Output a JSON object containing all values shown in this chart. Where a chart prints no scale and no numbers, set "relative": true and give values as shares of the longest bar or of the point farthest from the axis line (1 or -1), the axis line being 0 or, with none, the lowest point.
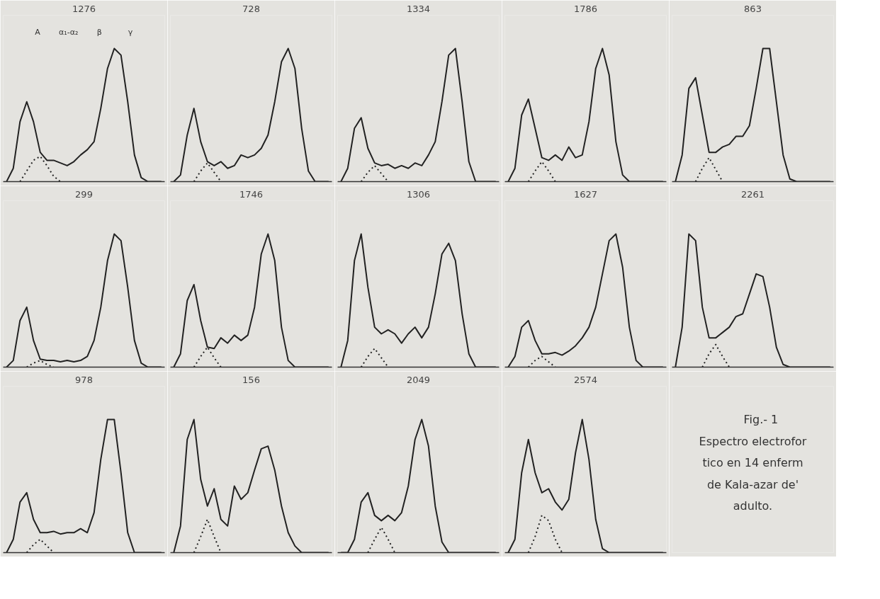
{
  "chart_data": [
    {
      "type": "line",
      "title": "1276",
      "relative": true,
      "categories": [
        null,
        null,
        null,
        null,
        null,
        null,
        null,
        null,
        null,
        null,
        null,
        null,
        null,
        null,
        null,
        null,
        null,
        null,
        null,
        null,
        null,
        null,
        null,
        null
      ],
      "annotations": [
        "A",
        "α₁-α₂",
        "β",
        "γ"
      ],
      "series": [
        {
          "color": "#222222",
          "line_style": "solid",
          "values": [
            0,
            0.1,
            0.45,
            0.6,
            0.45,
            0.22,
            0.16,
            0.16,
            0.14,
            0.12,
            0.15,
            0.2,
            0.24,
            0.3,
            0.55,
            0.85,
            1.0,
            0.95,
            0.6,
            0.2,
            0.03,
            0,
            0,
            0
          ]
        },
        {
          "color": "#222222",
          "line_style": "dotted",
          "values": [
            null,
            null,
            0,
            0.08,
            0.16,
            0.19,
            0.12,
            0.04,
            0,
            null,
            null,
            null,
            null,
            null,
            null,
            null,
            null,
            null,
            null,
            null,
            null,
            null,
            null,
            null
          ]
        }
      ]
    },
    {
      "type": "line",
      "title": "728",
      "relative": true,
      "categories": [
        null,
        null,
        null,
        null,
        null,
        null,
        null,
        null,
        null,
        null,
        null,
        null,
        null,
        null,
        null,
        null,
        null,
        null,
        null,
        null,
        null,
        null,
        null,
        null
      ],
      "series": [
        {
          "color": "#222222",
          "line_style": "solid",
          "values": [
            0,
            0.05,
            0.35,
            0.55,
            0.3,
            0.15,
            0.12,
            0.15,
            0.1,
            0.12,
            0.2,
            0.18,
            0.2,
            0.25,
            0.35,
            0.6,
            0.9,
            1.0,
            0.85,
            0.4,
            0.08,
            0,
            0,
            0
          ]
        },
        {
          "color": "#222222",
          "line_style": "dotted",
          "values": [
            null,
            null,
            null,
            0,
            0.08,
            0.14,
            0.07,
            0,
            null,
            null,
            null,
            null,
            null,
            null,
            null,
            null,
            null,
            null,
            null,
            null,
            null,
            null,
            null,
            null
          ]
        }
      ]
    },
    {
      "type": "line",
      "title": "1334",
      "relative": true,
      "categories": [
        null,
        null,
        null,
        null,
        null,
        null,
        null,
        null,
        null,
        null,
        null,
        null,
        null,
        null,
        null,
        null,
        null,
        null,
        null,
        null,
        null,
        null,
        null,
        null
      ],
      "series": [
        {
          "color": "#222222",
          "line_style": "solid",
          "values": [
            0,
            0.1,
            0.4,
            0.48,
            0.25,
            0.14,
            0.12,
            0.13,
            0.1,
            0.12,
            0.1,
            0.14,
            0.12,
            0.2,
            0.3,
            0.6,
            0.95,
            1.0,
            0.6,
            0.15,
            0,
            0,
            0,
            0
          ]
        },
        {
          "color": "#222222",
          "line_style": "dotted",
          "values": [
            null,
            null,
            null,
            0,
            0.07,
            0.12,
            0.06,
            0,
            null,
            null,
            null,
            null,
            null,
            null,
            null,
            null,
            null,
            null,
            null,
            null,
            null,
            null,
            null,
            null
          ]
        }
      ]
    },
    {
      "type": "line",
      "title": "1786",
      "relative": true,
      "categories": [
        null,
        null,
        null,
        null,
        null,
        null,
        null,
        null,
        null,
        null,
        null,
        null,
        null,
        null,
        null,
        null,
        null,
        null,
        null,
        null,
        null,
        null,
        null,
        null
      ],
      "series": [
        {
          "color": "#222222",
          "line_style": "solid",
          "values": [
            0,
            0.1,
            0.5,
            0.62,
            0.4,
            0.18,
            0.16,
            0.2,
            0.16,
            0.26,
            0.18,
            0.2,
            0.45,
            0.85,
            1.0,
            0.8,
            0.3,
            0.05,
            0,
            0,
            0,
            0,
            0,
            0
          ]
        },
        {
          "color": "#222222",
          "line_style": "dotted",
          "values": [
            null,
            null,
            null,
            0,
            0.08,
            0.15,
            0.08,
            0,
            null,
            null,
            null,
            null,
            null,
            null,
            null,
            null,
            null,
            null,
            null,
            null,
            null,
            null,
            null,
            null
          ]
        }
      ]
    },
    {
      "type": "line",
      "title": "863",
      "relative": true,
      "categories": [
        null,
        null,
        null,
        null,
        null,
        null,
        null,
        null,
        null,
        null,
        null,
        null,
        null,
        null,
        null,
        null,
        null,
        null,
        null,
        null,
        null,
        null,
        null,
        null
      ],
      "series": [
        {
          "color": "#222222",
          "line_style": "solid",
          "values": [
            0,
            0.2,
            0.7,
            0.78,
            0.5,
            0.22,
            0.22,
            0.26,
            0.28,
            0.34,
            0.34,
            0.42,
            0.7,
            1.0,
            1.0,
            0.6,
            0.2,
            0.02,
            0,
            0,
            0,
            0,
            0,
            0
          ]
        },
        {
          "color": "#222222",
          "line_style": "dotted",
          "values": [
            null,
            null,
            null,
            0,
            0.1,
            0.18,
            0.09,
            0,
            null,
            null,
            null,
            null,
            null,
            null,
            null,
            null,
            null,
            null,
            null,
            null,
            null,
            null,
            null,
            null
          ]
        }
      ]
    },
    {
      "type": "line",
      "title": "299",
      "relative": true,
      "categories": [
        null,
        null,
        null,
        null,
        null,
        null,
        null,
        null,
        null,
        null,
        null,
        null,
        null,
        null,
        null,
        null,
        null,
        null,
        null,
        null,
        null,
        null,
        null,
        null
      ],
      "series": [
        {
          "color": "#222222",
          "line_style": "solid",
          "values": [
            0,
            0.05,
            0.35,
            0.45,
            0.2,
            0.06,
            0.05,
            0.05,
            0.04,
            0.05,
            0.04,
            0.05,
            0.08,
            0.2,
            0.45,
            0.8,
            1.0,
            0.95,
            0.6,
            0.2,
            0.03,
            0,
            0,
            0
          ]
        },
        {
          "color": "#222222",
          "line_style": "dotted",
          "values": [
            null,
            null,
            null,
            0,
            0.03,
            0.05,
            0.02,
            0,
            null,
            null,
            null,
            null,
            null,
            null,
            null,
            null,
            null,
            null,
            null,
            null,
            null,
            null,
            null,
            null
          ]
        }
      ]
    },
    {
      "type": "line",
      "title": "1746",
      "relative": true,
      "categories": [
        null,
        null,
        null,
        null,
        null,
        null,
        null,
        null,
        null,
        null,
        null,
        null,
        null,
        null,
        null,
        null,
        null,
        null,
        null,
        null,
        null,
        null,
        null,
        null
      ],
      "series": [
        {
          "color": "#222222",
          "line_style": "solid",
          "values": [
            0,
            0.1,
            0.5,
            0.62,
            0.35,
            0.15,
            0.14,
            0.22,
            0.18,
            0.24,
            0.2,
            0.24,
            0.45,
            0.85,
            1.0,
            0.8,
            0.3,
            0.05,
            0,
            0,
            0,
            0,
            0,
            0
          ]
        },
        {
          "color": "#222222",
          "line_style": "dotted",
          "values": [
            null,
            null,
            null,
            0,
            0.08,
            0.15,
            0.07,
            0,
            null,
            null,
            null,
            null,
            null,
            null,
            null,
            null,
            null,
            null,
            null,
            null,
            null,
            null,
            null,
            null
          ]
        }
      ]
    },
    {
      "type": "line",
      "title": "1306",
      "relative": true,
      "categories": [
        null,
        null,
        null,
        null,
        null,
        null,
        null,
        null,
        null,
        null,
        null,
        null,
        null,
        null,
        null,
        null,
        null,
        null,
        null,
        null,
        null,
        null,
        null,
        null
      ],
      "series": [
        {
          "color": "#222222",
          "line_style": "solid",
          "values": [
            0,
            0.2,
            0.8,
            1.0,
            0.6,
            0.3,
            0.25,
            0.28,
            0.25,
            0.18,
            0.25,
            0.3,
            0.22,
            0.3,
            0.55,
            0.85,
            0.93,
            0.8,
            0.4,
            0.1,
            0,
            0,
            0,
            0
          ]
        },
        {
          "color": "#222222",
          "line_style": "dotted",
          "values": [
            null,
            null,
            null,
            0,
            0.08,
            0.14,
            0.07,
            0,
            null,
            null,
            null,
            null,
            null,
            null,
            null,
            null,
            null,
            null,
            null,
            null,
            null,
            null,
            null,
            null
          ]
        }
      ]
    },
    {
      "type": "line",
      "title": "1627",
      "relative": true,
      "categories": [
        null,
        null,
        null,
        null,
        null,
        null,
        null,
        null,
        null,
        null,
        null,
        null,
        null,
        null,
        null,
        null,
        null,
        null,
        null,
        null,
        null,
        null,
        null,
        null
      ],
      "series": [
        {
          "color": "#222222",
          "line_style": "solid",
          "values": [
            0,
            0.08,
            0.3,
            0.35,
            0.2,
            0.1,
            0.1,
            0.11,
            0.09,
            0.12,
            0.16,
            0.22,
            0.3,
            0.45,
            0.7,
            0.95,
            1.0,
            0.75,
            0.3,
            0.05,
            0,
            0,
            0,
            0
          ]
        },
        {
          "color": "#222222",
          "line_style": "dotted",
          "values": [
            null,
            null,
            null,
            0,
            0.05,
            0.08,
            0.04,
            0,
            null,
            null,
            null,
            null,
            null,
            null,
            null,
            null,
            null,
            null,
            null,
            null,
            null,
            null,
            null,
            null
          ]
        }
      ]
    },
    {
      "type": "line",
      "title": "2261",
      "relative": true,
      "categories": [
        null,
        null,
        null,
        null,
        null,
        null,
        null,
        null,
        null,
        null,
        null,
        null,
        null,
        null,
        null,
        null,
        null,
        null,
        null,
        null,
        null,
        null,
        null,
        null
      ],
      "series": [
        {
          "color": "#222222",
          "line_style": "solid",
          "values": [
            0,
            0.3,
            1.0,
            0.95,
            0.45,
            0.22,
            0.22,
            0.26,
            0.3,
            0.38,
            0.4,
            0.55,
            0.7,
            0.68,
            0.45,
            0.15,
            0.02,
            0,
            0,
            0,
            0,
            0,
            0,
            0
          ]
        },
        {
          "color": "#222222",
          "line_style": "dotted",
          "values": [
            null,
            null,
            null,
            null,
            0,
            0.1,
            0.17,
            0.08,
            0,
            null,
            null,
            null,
            null,
            null,
            null,
            null,
            null,
            null,
            null,
            null,
            null,
            null,
            null,
            null
          ]
        }
      ]
    },
    {
      "type": "line",
      "title": "978",
      "relative": true,
      "categories": [
        null,
        null,
        null,
        null,
        null,
        null,
        null,
        null,
        null,
        null,
        null,
        null,
        null,
        null,
        null,
        null,
        null,
        null,
        null,
        null,
        null,
        null,
        null,
        null
      ],
      "series": [
        {
          "color": "#222222",
          "line_style": "solid",
          "values": [
            0,
            0.1,
            0.38,
            0.45,
            0.25,
            0.15,
            0.15,
            0.16,
            0.14,
            0.15,
            0.15,
            0.18,
            0.15,
            0.3,
            0.7,
            1.0,
            1.0,
            0.6,
            0.15,
            0,
            0,
            0,
            0,
            0
          ]
        },
        {
          "color": "#222222",
          "line_style": "dotted",
          "values": [
            null,
            null,
            null,
            0,
            0.06,
            0.1,
            0.05,
            0,
            null,
            null,
            null,
            null,
            null,
            null,
            null,
            null,
            null,
            null,
            null,
            null,
            null,
            null,
            null,
            null
          ]
        }
      ]
    },
    {
      "type": "line",
      "title": "156",
      "relative": true,
      "categories": [
        null,
        null,
        null,
        null,
        null,
        null,
        null,
        null,
        null,
        null,
        null,
        null,
        null,
        null,
        null,
        null,
        null,
        null,
        null,
        null,
        null,
        null,
        null,
        null
      ],
      "series": [
        {
          "color": "#222222",
          "line_style": "solid",
          "values": [
            0,
            0.2,
            0.85,
            1.0,
            0.55,
            0.35,
            0.48,
            0.25,
            0.2,
            0.5,
            0.4,
            0.45,
            0.62,
            0.78,
            0.8,
            0.62,
            0.35,
            0.15,
            0.05,
            0,
            0,
            0,
            0,
            0
          ]
        },
        {
          "color": "#222222",
          "line_style": "dotted",
          "values": [
            null,
            null,
            null,
            0,
            0.12,
            0.25,
            0.12,
            0,
            null,
            null,
            null,
            null,
            null,
            null,
            null,
            null,
            null,
            null,
            null,
            null,
            null,
            null,
            null,
            null
          ]
        }
      ]
    },
    {
      "type": "line",
      "title": "2049",
      "relative": true,
      "categories": [
        null,
        null,
        null,
        null,
        null,
        null,
        null,
        null,
        null,
        null,
        null,
        null,
        null,
        null,
        null,
        null,
        null,
        null,
        null,
        null,
        null,
        null,
        null,
        null
      ],
      "series": [
        {
          "color": "#222222",
          "line_style": "solid",
          "values": [
            0,
            0,
            0.1,
            0.38,
            0.45,
            0.28,
            0.24,
            0.28,
            0.24,
            0.3,
            0.5,
            0.85,
            1.0,
            0.8,
            0.35,
            0.08,
            0,
            0,
            0,
            0,
            0,
            0,
            0,
            0
          ]
        },
        {
          "color": "#222222",
          "line_style": "dotted",
          "values": [
            null,
            null,
            null,
            null,
            0,
            0.1,
            0.19,
            0.1,
            0,
            null,
            null,
            null,
            null,
            null,
            null,
            null,
            null,
            null,
            null,
            null,
            null,
            null,
            null,
            null
          ]
        }
      ]
    },
    {
      "type": "line",
      "title": "2574",
      "relative": true,
      "categories": [
        null,
        null,
        null,
        null,
        null,
        null,
        null,
        null,
        null,
        null,
        null,
        null,
        null,
        null,
        null,
        null,
        null,
        null,
        null,
        null,
        null,
        null,
        null,
        null
      ],
      "series": [
        {
          "color": "#222222",
          "line_style": "solid",
          "values": [
            0,
            0.1,
            0.6,
            0.85,
            0.6,
            0.45,
            0.48,
            0.38,
            0.32,
            0.4,
            0.75,
            1.0,
            0.7,
            0.25,
            0.03,
            0,
            0,
            0,
            0,
            0,
            0,
            0,
            0,
            0
          ]
        },
        {
          "color": "#222222",
          "line_style": "dotted",
          "values": [
            null,
            null,
            null,
            0,
            0.12,
            0.28,
            0.24,
            0.1,
            0,
            null,
            null,
            null,
            null,
            null,
            null,
            null,
            null,
            null,
            null,
            null,
            null,
            null,
            null,
            null
          ]
        }
      ]
    },
    {
      "type": "other",
      "title": "Fig.- 1",
      "annotations": [
        "Espectro electrofor",
        "tico en 14 enferm",
        "de Kala-azar de'",
        "adulto."
      ]
    }
  ]
}
